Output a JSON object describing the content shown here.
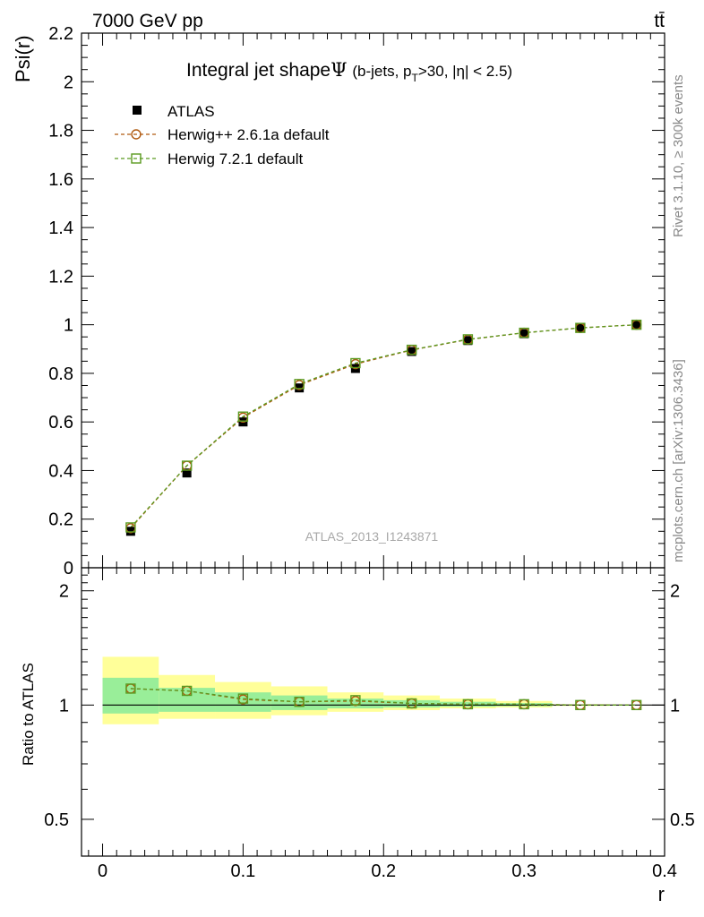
{
  "header": {
    "energy_label": "7000 GeV pp",
    "process_label": "tt̄"
  },
  "side_labels": {
    "rivet": "Rivet 3.1.10, ≥ 300k events",
    "mcplots": "mcplots.cern.ch [arXiv:1306.3436]"
  },
  "chart_data": [
    {
      "type": "line",
      "title_main": "Integral jet shape",
      "title_symbol": "Ψ",
      "title_sub_1": "(b-jets, p",
      "title_sub_T": "T",
      "title_sub_2": ">30, |η| < 2.5)",
      "ylabel": "Psi(r)",
      "xlabel": "r",
      "xlim": [
        -0.015,
        0.4
      ],
      "ylim": [
        0,
        2.2
      ],
      "x_ticks": [
        0,
        0.1,
        0.2,
        0.3,
        0.4
      ],
      "x_tick_labels": [
        "0",
        "0.1",
        "0.2",
        "0.3",
        "0.4"
      ],
      "y_ticks": [
        0,
        0.2,
        0.4,
        0.6,
        0.8,
        1,
        1.2,
        1.4,
        1.6,
        1.8,
        2,
        2.2
      ],
      "y_tick_labels": [
        "0",
        "0.2",
        "0.4",
        "0.6",
        "0.8",
        "1",
        "1.2",
        "1.4",
        "1.6",
        "1.8",
        "2",
        "2.2"
      ],
      "x": [
        0.02,
        0.06,
        0.1,
        0.14,
        0.18,
        0.22,
        0.26,
        0.3,
        0.34,
        0.38
      ],
      "x_edges": [
        0,
        0.04,
        0.08,
        0.12,
        0.16,
        0.2,
        0.24,
        0.28,
        0.32,
        0.36,
        0.4
      ],
      "watermark": "ATLAS_2013_I1243871",
      "legend_position": "top-left",
      "series": [
        {
          "name": "ATLAS",
          "marker": "filled-square",
          "color": "#000000",
          "values": [
            0.15,
            0.39,
            0.6,
            0.74,
            0.82,
            0.89,
            0.935,
            0.963,
            0.986,
            1.0
          ]
        },
        {
          "name": "Herwig++ 2.6.1a default",
          "marker": "open-circle",
          "color": "#b05a10",
          "values": [
            0.163,
            0.42,
            0.618,
            0.752,
            0.838,
            0.896,
            0.939,
            0.967,
            0.987,
            1.0
          ]
        },
        {
          "name": "Herwig 7.2.1 default",
          "marker": "open-square",
          "color": "#5a9a20",
          "values": [
            0.166,
            0.42,
            0.622,
            0.756,
            0.842,
            0.897,
            0.94,
            0.967,
            0.987,
            1.0
          ]
        }
      ]
    },
    {
      "type": "line",
      "ylabel": "Ratio to ATLAS",
      "ylim": [
        0.4,
        2.3
      ],
      "y_scale": "log",
      "y_ticks": [
        0.5,
        1,
        2
      ],
      "y_tick_labels": [
        "0.5",
        "1",
        "2"
      ],
      "x": [
        0.02,
        0.06,
        0.1,
        0.14,
        0.18,
        0.22,
        0.26,
        0.3,
        0.34,
        0.38
      ],
      "band_yellow": [
        [
          0.89,
          1.34
        ],
        [
          0.92,
          1.2
        ],
        [
          0.92,
          1.15
        ],
        [
          0.94,
          1.12
        ],
        [
          0.96,
          1.08
        ],
        [
          0.97,
          1.06
        ],
        [
          0.98,
          1.04
        ],
        [
          0.985,
          1.025
        ],
        [
          0.995,
          1.005
        ],
        [
          0.998,
          1.002
        ]
      ],
      "band_green": [
        [
          0.95,
          1.18
        ],
        [
          0.96,
          1.11
        ],
        [
          0.96,
          1.08
        ],
        [
          0.97,
          1.06
        ],
        [
          0.98,
          1.04
        ],
        [
          0.985,
          1.03
        ],
        [
          0.99,
          1.02
        ],
        [
          0.993,
          1.012
        ],
        [
          0.998,
          1.002
        ],
        [
          0.999,
          1.001
        ]
      ],
      "colors": {
        "yellow_band": "#ffff99",
        "green_band": "#99ee99"
      },
      "series": [
        {
          "name": "Herwig++ 2.6.1a default",
          "marker": "open-circle",
          "color": "#b05a10",
          "values": [
            1.105,
            1.09,
            1.035,
            1.02,
            1.025,
            1.01,
            1.005,
            1.005,
            1.0,
            1.0
          ]
        },
        {
          "name": "Herwig 7.2.1 default",
          "marker": "open-square",
          "color": "#5a9a20",
          "values": [
            1.105,
            1.09,
            1.04,
            1.02,
            1.03,
            1.01,
            1.005,
            1.005,
            1.0,
            1.0
          ]
        }
      ]
    }
  ]
}
